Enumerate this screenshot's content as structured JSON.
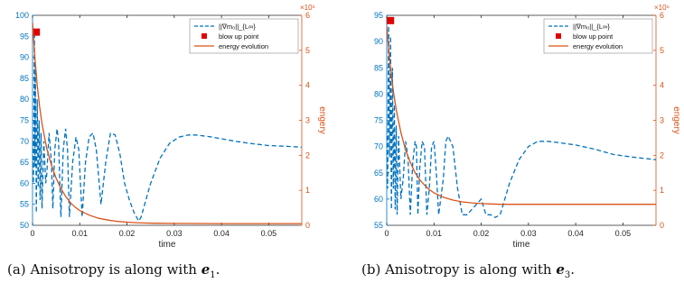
{
  "chart_data": [
    {
      "type": "line",
      "xlabel": "time",
      "ylabel_left": "",
      "ylabel_right": "engery",
      "xlim": [
        0,
        0.057
      ],
      "xticks": [
        0,
        0.01,
        0.02,
        0.03,
        0.04,
        0.05
      ],
      "xtick_labels": [
        "0",
        "0.01",
        "0.02",
        "0.03",
        "0.04",
        "0.05"
      ],
      "ylim_left": [
        50,
        100
      ],
      "yticks_left": [
        50,
        55,
        60,
        65,
        70,
        75,
        80,
        85,
        90,
        95,
        100
      ],
      "ylim_right": [
        0,
        6
      ],
      "yticks_right": [
        0,
        1,
        2,
        3,
        4,
        5,
        6
      ],
      "right_exponent_label": "×10⁶",
      "legend_position": "top-right",
      "grid": false,
      "series": [
        {
          "name": "||∇m₀||_{L∞}",
          "axis": "left",
          "style": "dashed",
          "color": "#0072BD",
          "x": [
            0.0,
            0.0002,
            0.0004,
            0.0005,
            0.0006,
            0.0008,
            0.001,
            0.0012,
            0.0014,
            0.0016,
            0.0018,
            0.002,
            0.0024,
            0.0028,
            0.003,
            0.0035,
            0.004,
            0.0043,
            0.0047,
            0.0052,
            0.0055,
            0.006,
            0.0065,
            0.007,
            0.0074,
            0.0078,
            0.0085,
            0.0092,
            0.0098,
            0.0105,
            0.0112,
            0.012,
            0.0128,
            0.0135,
            0.0145,
            0.0155,
            0.0165,
            0.0175,
            0.0185,
            0.0195,
            0.0205,
            0.0215,
            0.0225,
            0.023,
            0.025,
            0.027,
            0.029,
            0.031,
            0.033,
            0.0345,
            0.036,
            0.038,
            0.04,
            0.043,
            0.046,
            0.05,
            0.054,
            0.057
          ],
          "y": [
            70,
            60,
            96,
            64,
            88,
            53,
            80,
            59,
            75,
            56,
            72,
            54,
            70,
            60,
            62,
            72,
            65,
            54,
            68,
            73,
            70,
            52,
            68,
            73,
            68,
            52,
            65,
            71,
            68,
            52,
            65,
            71,
            72,
            68,
            55,
            65,
            72,
            71.5,
            67,
            60,
            56,
            53,
            51,
            52,
            60,
            66,
            69.5,
            71,
            71.5,
            71.5,
            71.3,
            71,
            70.6,
            70,
            69.5,
            69,
            68.8,
            68.6
          ]
        },
        {
          "name": "blow up point",
          "axis": "left",
          "style": "marker",
          "color": "#E00000",
          "x": [
            0.0008
          ],
          "y": [
            96
          ]
        },
        {
          "name": "energy evolution",
          "axis": "right",
          "style": "solid",
          "color": "#D95319",
          "x": [
            0.0,
            0.0005,
            0.001,
            0.0015,
            0.002,
            0.003,
            0.004,
            0.005,
            0.006,
            0.007,
            0.008,
            0.009,
            0.01,
            0.012,
            0.014,
            0.016,
            0.018,
            0.02,
            0.022,
            0.024,
            0.026,
            0.03,
            0.035,
            0.04,
            0.045,
            0.05,
            0.057
          ],
          "y": [
            5.8,
            4.8,
            4.0,
            3.4,
            2.9,
            2.2,
            1.72,
            1.35,
            1.05,
            0.83,
            0.65,
            0.52,
            0.42,
            0.29,
            0.2,
            0.15,
            0.11,
            0.09,
            0.075,
            0.065,
            0.06,
            0.055,
            0.052,
            0.05,
            0.05,
            0.05,
            0.05
          ]
        }
      ],
      "caption": {
        "label": "(a)",
        "text": "Anisotropy is along with",
        "symbol": "e",
        "subscript": "1",
        "end": "."
      }
    },
    {
      "type": "line",
      "xlabel": "time",
      "ylabel_left": "",
      "ylabel_right": "engery",
      "xlim": [
        0,
        0.057
      ],
      "xticks": [
        0,
        0.01,
        0.02,
        0.03,
        0.04,
        0.05
      ],
      "xtick_labels": [
        "0",
        "0.01",
        "0.02",
        "0.03",
        "0.04",
        "0.05"
      ],
      "ylim_left": [
        55,
        95
      ],
      "yticks_left": [
        55,
        60,
        65,
        70,
        75,
        80,
        85,
        90,
        95
      ],
      "ylim_right": [
        0,
        6
      ],
      "yticks_right": [
        0,
        1,
        2,
        3,
        4,
        5,
        6
      ],
      "right_exponent_label": "×10⁶",
      "legend_position": "top-right",
      "grid": false,
      "series": [
        {
          "name": "||∇m₀||_{L∞}",
          "axis": "left",
          "style": "dashed",
          "color": "#0072BD",
          "x": [
            0.0,
            0.0002,
            0.0004,
            0.0006,
            0.0008,
            0.001,
            0.0012,
            0.0014,
            0.0016,
            0.0018,
            0.002,
            0.0022,
            0.0025,
            0.003,
            0.0035,
            0.004,
            0.0045,
            0.005,
            0.0055,
            0.006,
            0.0063,
            0.0066,
            0.007,
            0.0075,
            0.008,
            0.0085,
            0.009,
            0.0095,
            0.01,
            0.0105,
            0.011,
            0.012,
            0.0125,
            0.013,
            0.014,
            0.015,
            0.016,
            0.017,
            0.018,
            0.019,
            0.02,
            0.021,
            0.022,
            0.023,
            0.024,
            0.026,
            0.028,
            0.03,
            0.032,
            0.034,
            0.036,
            0.04,
            0.044,
            0.048,
            0.052,
            0.057
          ],
          "y": [
            72,
            62,
            93,
            68,
            91,
            58,
            85,
            62,
            78,
            58,
            74,
            57,
            72,
            60,
            64,
            71,
            68,
            57,
            67,
            71,
            70,
            57,
            66,
            71,
            70,
            57,
            62,
            70,
            71,
            65,
            57,
            64,
            71,
            72,
            70,
            62,
            57,
            57,
            58,
            59,
            60,
            57,
            57,
            56.5,
            57,
            63,
            67.5,
            70,
            71,
            71,
            70.8,
            70.3,
            69.5,
            68.5,
            68,
            67.5
          ]
        },
        {
          "name": "blow up point",
          "axis": "left",
          "style": "marker",
          "color": "#E00000",
          "x": [
            0.0008
          ],
          "y": [
            94
          ]
        },
        {
          "name": "energy evolution",
          "axis": "right",
          "style": "solid",
          "color": "#D95319",
          "x": [
            0.0,
            0.0005,
            0.001,
            0.0015,
            0.002,
            0.003,
            0.004,
            0.005,
            0.006,
            0.007,
            0.008,
            0.009,
            0.01,
            0.012,
            0.014,
            0.016,
            0.018,
            0.02,
            0.022,
            0.024,
            0.026,
            0.03,
            0.035,
            0.04,
            0.045,
            0.05,
            0.057
          ],
          "y": [
            5.7,
            4.9,
            4.25,
            3.75,
            3.3,
            2.65,
            2.15,
            1.8,
            1.5,
            1.3,
            1.15,
            1.02,
            0.93,
            0.8,
            0.72,
            0.67,
            0.64,
            0.62,
            0.61,
            0.6,
            0.6,
            0.6,
            0.6,
            0.6,
            0.6,
            0.6,
            0.6
          ]
        }
      ],
      "caption": {
        "label": "(b)",
        "text": "Anisotropy is along with",
        "symbol": "e",
        "subscript": "3",
        "end": "."
      }
    }
  ]
}
